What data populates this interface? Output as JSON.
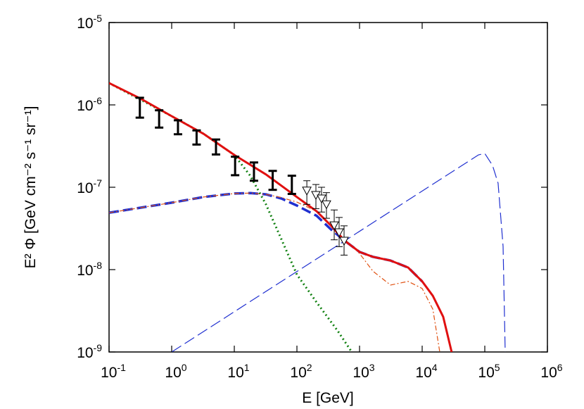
{
  "chart_data": {
    "type": "line",
    "x_label": "E [GeV]",
    "y_label": "E² Φ [GeV cm⁻² s⁻¹ sr⁻¹]",
    "xlog": true,
    "ylog": true,
    "xlim": [
      0.1,
      1000000
    ],
    "ylim": [
      1e-09,
      1e-05
    ],
    "xticks": [
      {
        "value": 0.1,
        "label": "10",
        "power": "-1"
      },
      {
        "value": 1,
        "label": "10",
        "power": "0"
      },
      {
        "value": 10,
        "label": "10",
        "power": "1"
      },
      {
        "value": 100,
        "label": "10",
        "power": "2"
      },
      {
        "value": 1000,
        "label": "10",
        "power": "3"
      },
      {
        "value": 10000,
        "label": "10",
        "power": "4"
      },
      {
        "value": 100000,
        "label": "10",
        "power": "5"
      },
      {
        "value": 1000000,
        "label": "10",
        "power": "6"
      }
    ],
    "yticks": [
      {
        "value": 1e-09,
        "label": "10",
        "power": "-9"
      },
      {
        "value": 1e-08,
        "label": "10",
        "power": "-8"
      },
      {
        "value": 1e-07,
        "label": "10",
        "power": "-7"
      },
      {
        "value": 1e-06,
        "label": "10",
        "power": "-6"
      },
      {
        "value": 1e-05,
        "label": "10",
        "power": "-5"
      }
    ],
    "series": [
      {
        "style": "thin-dashed",
        "color": "#2030d0",
        "x": [
          1,
          79000,
          100000,
          133000,
          163000,
          196000,
          212000
        ],
        "values": [
          1e-09,
          2.47e-07,
          2.57e-07,
          1.84e-07,
          1.12e-07,
          1.91e-08,
          1e-09
        ]
      },
      {
        "style": "thick-dashed",
        "color": "#2030d0",
        "x": [
          0.1,
          0.32,
          1,
          3.2,
          10,
          18.1,
          32,
          56.6,
          100,
          207,
          346,
          580,
          1000,
          1630,
          3120,
          5960,
          10000
        ],
        "values": [
          4.9e-08,
          5.65e-08,
          6.5e-08,
          7.6e-08,
          8.4e-08,
          8.5e-08,
          8.2e-08,
          7.3e-08,
          6e-08,
          4.5e-08,
          3.1e-08,
          2.24e-08,
          1.64e-08,
          1.43e-08,
          1.29e-08,
          1.06e-08,
          7.2e-09
        ]
      },
      {
        "style": "dashdot",
        "color": "#e05010",
        "x": [
          0.1,
          0.32,
          1,
          3.2,
          10,
          18.1,
          32,
          56.6,
          100,
          207,
          580,
          1000,
          1630,
          3120,
          5960,
          10000,
          14800,
          19100
        ],
        "values": [
          4.9e-08,
          5.65e-08,
          6.5e-08,
          7.6e-08,
          8.4e-08,
          8.5e-08,
          8.2e-08,
          7.5e-08,
          6.6e-08,
          5.1e-08,
          2.33e-08,
          1.57e-08,
          9.6e-09,
          6.5e-09,
          7.2e-09,
          5.9e-09,
          3.3e-09,
          1e-09
        ]
      },
      {
        "style": "dotted",
        "color": "#108010",
        "x": [
          0.1,
          1,
          3.2,
          10,
          18.1,
          32,
          56.6,
          100,
          207,
          449,
          751
        ],
        "values": [
          1.84e-06,
          7.3e-07,
          4.47e-07,
          2.47e-07,
          1.37e-07,
          6.2e-08,
          2.33e-08,
          8.7e-09,
          4e-09,
          1.8e-09,
          1e-09
        ]
      },
      {
        "style": "solid",
        "color": "#e01010",
        "x": [
          0.1,
          0.32,
          1,
          3.2,
          10,
          32,
          100,
          207,
          346,
          580,
          1000,
          1630,
          3120,
          5960,
          10000,
          14800,
          21700,
          29600
        ],
        "values": [
          1.84e-06,
          1.19e-06,
          7.3e-07,
          4.47e-07,
          2.47e-07,
          1.43e-07,
          7.6e-08,
          5.1e-08,
          3.45e-08,
          2.24e-08,
          1.64e-08,
          1.43e-08,
          1.29e-08,
          1.06e-08,
          7.2e-09,
          4.8e-09,
          2.67e-09,
          1e-09
        ]
      },
      {
        "style": "points",
        "marker": "triangle",
        "color": "#000000",
        "x": [
          144,
          201,
          247,
          296,
          394,
          472,
          566
        ],
        "values": [
          9.1e-08,
          8.05e-08,
          7.3e-08,
          6.2e-08,
          3.45e-08,
          2.84e-08,
          2.24e-08
        ],
        "y_low": [
          6.2e-08,
          5.5e-08,
          5e-08,
          4.2e-08,
          2.3e-08,
          1.9e-08,
          1.5e-08
        ],
        "y_high": [
          1.2e-07,
          1.08e-07,
          1e-07,
          8.6e-08,
          5.3e-08,
          4.3e-08,
          3.4e-08
        ]
      },
      {
        "style": "points",
        "marker": "cap",
        "color": "#000000",
        "x": [
          0.31,
          0.63,
          1.26,
          2.5,
          5.1,
          10.3,
          20.6,
          41,
          83
        ],
        "values": [
          8.9e-07,
          6.6e-07,
          5.3e-07,
          4e-07,
          3.07e-07,
          1.8e-07,
          1.57e-07,
          1.22e-07,
          1.08e-07
        ],
        "y_low": [
          7e-07,
          5.3e-07,
          4.4e-07,
          3.3e-07,
          2.5e-07,
          1.4e-07,
          1.2e-07,
          9.3e-08,
          8.3e-08
        ],
        "y_high": [
          1.22e-06,
          8.6e-07,
          6.5e-07,
          4.9e-07,
          3.8e-07,
          2.35e-07,
          2e-07,
          1.58e-07,
          1.38e-07
        ]
      }
    ]
  }
}
